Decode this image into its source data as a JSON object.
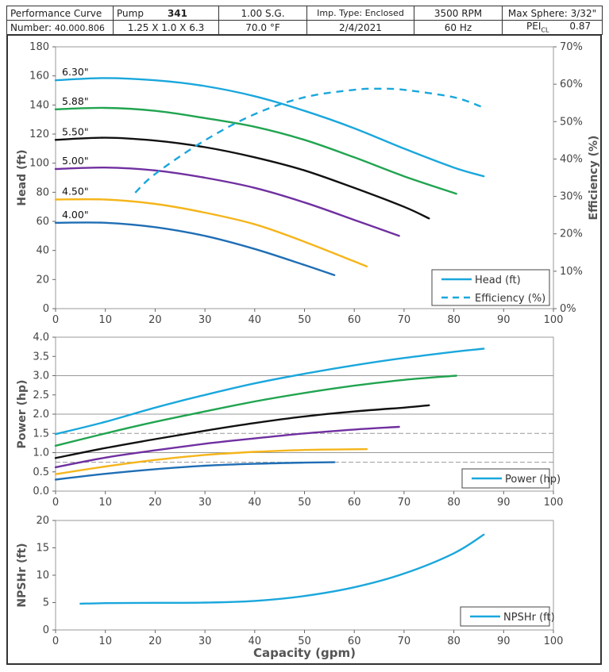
{
  "header": {
    "row1": {
      "title": "Performance Curve",
      "pump_label": "Pump",
      "pump_value": "341",
      "sg": "1.00  S.G.",
      "imp_type": "Imp. Type: Enclosed",
      "rpm": "3500   RPM",
      "max_sphere": "Max Sphere: 3/32\""
    },
    "row2": {
      "number_label": "Number:",
      "number_value": "40.000.806",
      "size": "1.25 X 1.0 X 6.3",
      "temp": "70.0 °F",
      "date": "2/4/2021",
      "hz": "60 Hz",
      "pei_label": "PEI",
      "pei_sub": "CL",
      "pei_value": "0.87"
    }
  },
  "colors": {
    "d630": "#1aa7dc",
    "d588": "#21a450",
    "d550": "#111111",
    "d500": "#7030a0",
    "d450": "#f5b51b",
    "d400": "#1f6eb5",
    "efficiency": "#1aa7dc",
    "grid": "#999999"
  },
  "chart_data": [
    {
      "id": "head",
      "type": "line",
      "ylabel": "Head (ft)",
      "y2label": "Efficiency (%)",
      "xlim": [
        0,
        100
      ],
      "ylim": [
        0,
        180
      ],
      "y2lim": [
        0,
        70
      ],
      "xticks": [
        "0",
        "10",
        "20",
        "30",
        "40",
        "50",
        "60",
        "70",
        "80",
        "90",
        "100"
      ],
      "yticks": [
        "0",
        "20",
        "40",
        "60",
        "80",
        "100",
        "120",
        "140",
        "160",
        "180"
      ],
      "y2ticks": [
        "0%",
        "10%",
        "20%",
        "30%",
        "40%",
        "50%",
        "60%",
        "70%"
      ],
      "series": [
        {
          "name": "6.30\"",
          "color_key": "d630",
          "x": [
            0,
            10,
            20,
            30,
            40,
            50,
            60,
            70,
            80,
            86
          ],
          "y": [
            157,
            158.5,
            157,
            153,
            146,
            136,
            124,
            110,
            97,
            91
          ]
        },
        {
          "name": "5.88\"",
          "color_key": "d588",
          "x": [
            0,
            10,
            20,
            30,
            40,
            50,
            60,
            70,
            80.5
          ],
          "y": [
            137,
            138,
            136,
            131,
            125,
            116,
            104,
            91,
            79
          ]
        },
        {
          "name": "5.50\"",
          "color_key": "d550",
          "x": [
            0,
            10,
            20,
            30,
            40,
            50,
            60,
            70,
            75
          ],
          "y": [
            116,
            117.5,
            115.5,
            111,
            104,
            95,
            83,
            70,
            62
          ]
        },
        {
          "name": "5.00\"",
          "color_key": "d500",
          "x": [
            0,
            10,
            20,
            30,
            40,
            50,
            60,
            69
          ],
          "y": [
            96,
            97,
            95,
            90,
            83,
            73,
            61,
            50
          ]
        },
        {
          "name": "4.50\"",
          "color_key": "d450",
          "x": [
            0,
            10,
            20,
            30,
            40,
            50,
            62.5
          ],
          "y": [
            75,
            75,
            72,
            66,
            58,
            46,
            29
          ]
        },
        {
          "name": "4.00\"",
          "color_key": "d400",
          "x": [
            0,
            10,
            20,
            30,
            40,
            50,
            56
          ],
          "y": [
            59,
            59,
            56,
            50,
            41,
            30,
            23
          ]
        }
      ],
      "efficiency": {
        "name": "Efficiency (%)",
        "x": [
          16,
          20,
          30,
          40,
          50,
          60,
          65,
          70,
          80,
          85.5
        ],
        "y": [
          31,
          36,
          45,
          52,
          56.5,
          58.5,
          58.8,
          58.5,
          56.5,
          54
        ]
      },
      "legend": [
        {
          "label": "Head (ft)",
          "style": "solid"
        },
        {
          "label": "Efficiency (%)",
          "style": "dashed"
        }
      ]
    },
    {
      "id": "power",
      "type": "line",
      "ylabel": "Power (hp)",
      "xlim": [
        0,
        100
      ],
      "ylim": [
        0,
        4.0
      ],
      "xticks": [
        "0",
        "10",
        "20",
        "30",
        "40",
        "50",
        "60",
        "70",
        "80",
        "90",
        "100"
      ],
      "yticks": [
        "0.0",
        "0.5",
        "1.0",
        "1.5",
        "2.0",
        "2.5",
        "3.0",
        "3.5",
        "4.0"
      ],
      "series": [
        {
          "name": "6.30\"",
          "color_key": "d630",
          "x": [
            0,
            10,
            20,
            30,
            40,
            50,
            60,
            70,
            80,
            86
          ],
          "y": [
            1.48,
            1.8,
            2.17,
            2.5,
            2.8,
            3.05,
            3.27,
            3.46,
            3.62,
            3.7
          ]
        },
        {
          "name": "5.88\"",
          "color_key": "d588",
          "x": [
            0,
            10,
            20,
            30,
            40,
            50,
            60,
            70,
            80.5
          ],
          "y": [
            1.18,
            1.5,
            1.8,
            2.07,
            2.33,
            2.55,
            2.74,
            2.89,
            3.0
          ]
        },
        {
          "name": "5.50\"",
          "color_key": "d550",
          "x": [
            0,
            10,
            20,
            30,
            40,
            50,
            60,
            70,
            75
          ],
          "y": [
            0.86,
            1.12,
            1.35,
            1.57,
            1.77,
            1.94,
            2.07,
            2.17,
            2.23
          ]
        },
        {
          "name": "5.00\"",
          "color_key": "d500",
          "x": [
            0,
            10,
            20,
            30,
            40,
            50,
            60,
            69
          ],
          "y": [
            0.62,
            0.87,
            1.06,
            1.23,
            1.37,
            1.5,
            1.6,
            1.67
          ]
        },
        {
          "name": "4.50\"",
          "color_key": "d450",
          "x": [
            0,
            10,
            20,
            30,
            40,
            50,
            62.5
          ],
          "y": [
            0.44,
            0.64,
            0.81,
            0.94,
            1.02,
            1.07,
            1.09
          ]
        },
        {
          "name": "4.00\"",
          "color_key": "d400",
          "x": [
            0,
            10,
            20,
            30,
            40,
            50,
            56
          ],
          "y": [
            0.3,
            0.45,
            0.57,
            0.66,
            0.71,
            0.74,
            0.75
          ]
        }
      ],
      "reference_lines": [
        0.75,
        1.0,
        1.5,
        2.0,
        3.0
      ],
      "legend": [
        {
          "label": "Power (hp)",
          "style": "solid"
        }
      ]
    },
    {
      "id": "npshr",
      "type": "line",
      "xlabel": "Capacity (gpm)",
      "ylabel": "NPSHr (ft)",
      "xlim": [
        0,
        100
      ],
      "ylim": [
        0,
        20
      ],
      "xticks": [
        "0",
        "10",
        "20",
        "30",
        "40",
        "50",
        "60",
        "70",
        "80",
        "90",
        "100"
      ],
      "yticks": [
        "0",
        "5",
        "10",
        "15",
        "20"
      ],
      "series": [
        {
          "name": "NPSHr (ft)",
          "color_key": "d630",
          "x": [
            5,
            10,
            20,
            30,
            40,
            50,
            60,
            70,
            80,
            86
          ],
          "y": [
            4.8,
            4.9,
            4.95,
            5.0,
            5.3,
            6.2,
            7.8,
            10.3,
            14.0,
            17.4
          ]
        }
      ],
      "legend": [
        {
          "label": "NPSHr (ft)",
          "style": "solid"
        }
      ]
    }
  ]
}
